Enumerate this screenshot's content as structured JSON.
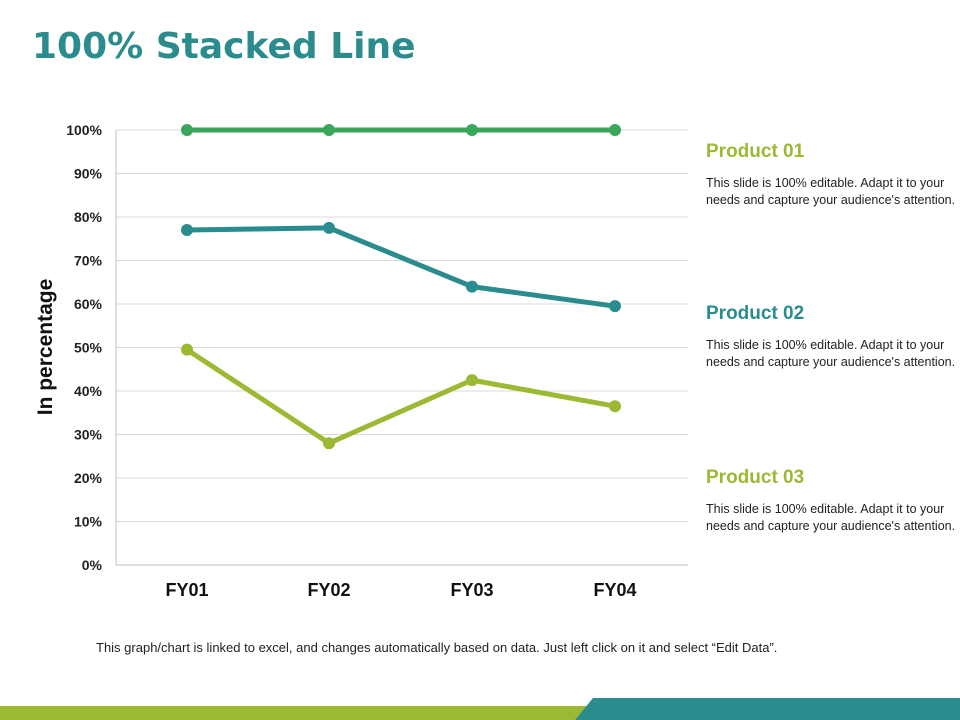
{
  "page": {
    "title": "100% Stacked Line",
    "footnote": "This graph/chart is linked to excel, and changes automatically based on data. Just left click on it and select “Edit Data”."
  },
  "colors": {
    "title": "#2b8c8e",
    "product01": "#3aa65c",
    "product02": "#2b8c8e",
    "product03": "#9bb932",
    "footer_left": "#9bb932",
    "footer_right": "#2b8c8e"
  },
  "legend": [
    {
      "title": "Product 01",
      "desc": "This slide is 100% editable. Adapt it to your needs and capture your audience's attention."
    },
    {
      "title": "Product 02",
      "desc": "This slide is 100% editable. Adapt it to your needs and capture your audience's attention."
    },
    {
      "title": "Product 03",
      "desc": "This slide is 100% editable. Adapt it to your needs and capture your audience's attention."
    }
  ],
  "chart_data": {
    "type": "line",
    "title": "100% Stacked Line",
    "xlabel": "",
    "ylabel": "In percentage",
    "categories": [
      "FY01",
      "FY02",
      "FY03",
      "FY04"
    ],
    "ylim": [
      0,
      100
    ],
    "yticks": [
      "0%",
      "10%",
      "20%",
      "30%",
      "40%",
      "50%",
      "60%",
      "70%",
      "80%",
      "90%",
      "100%"
    ],
    "grid": true,
    "series": [
      {
        "name": "Product 01",
        "color": "#3aa65c",
        "values": [
          100,
          100,
          100,
          100
        ]
      },
      {
        "name": "Product 02",
        "color": "#2b8c8e",
        "values": [
          77,
          77.5,
          64,
          59.5
        ]
      },
      {
        "name": "Product 03",
        "color": "#9bb932",
        "values": [
          49.5,
          28,
          42.5,
          36.5
        ]
      }
    ]
  }
}
